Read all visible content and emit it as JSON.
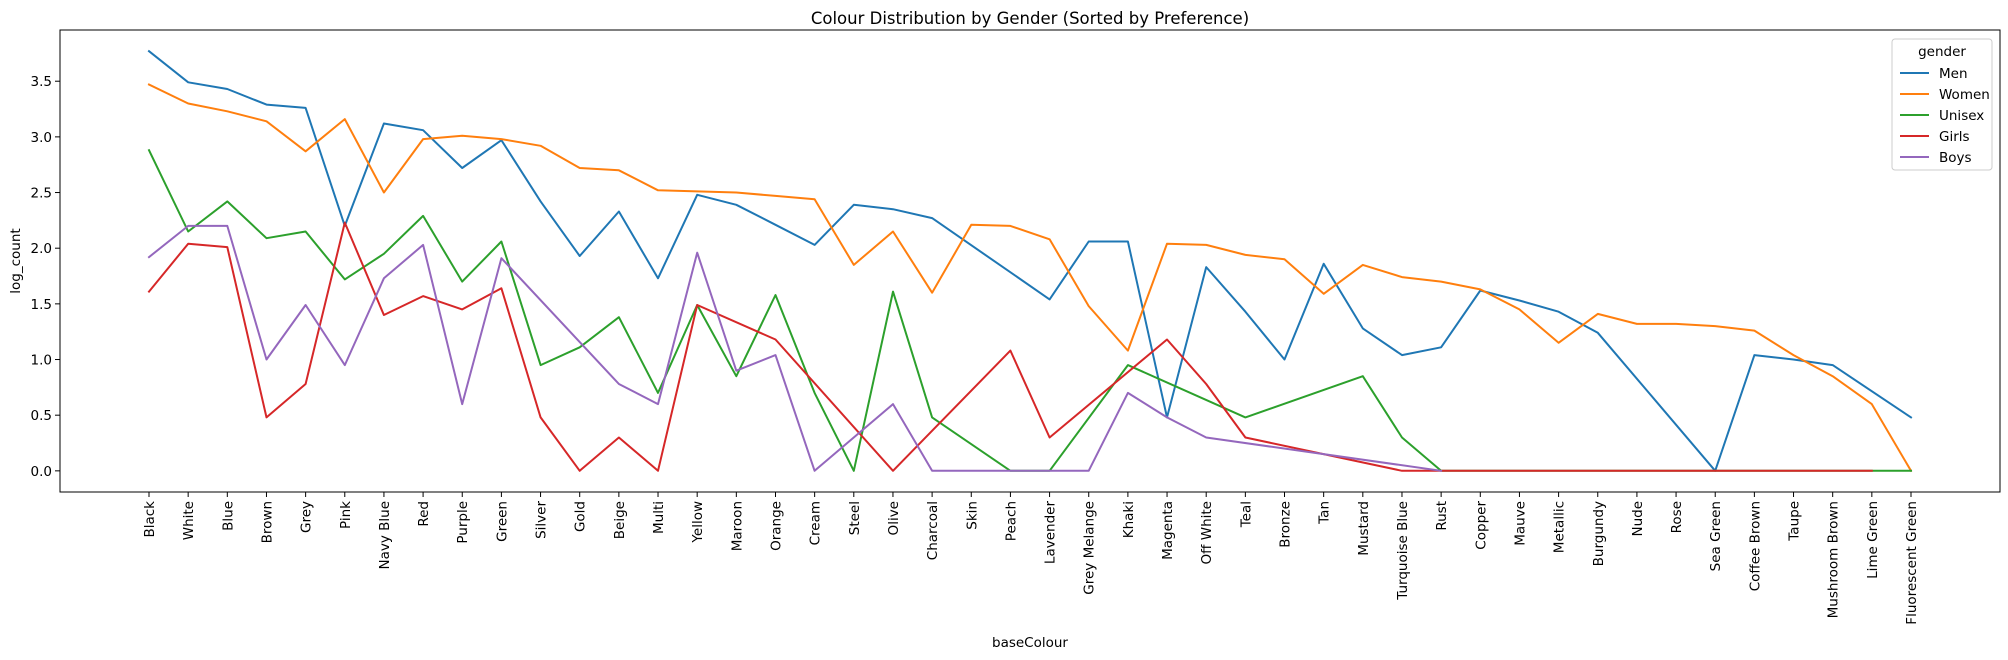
{
  "chart_data": {
    "type": "line",
    "title": "Colour Distribution by Gender (Sorted by Preference)",
    "xlabel": "baseColour",
    "ylabel": "log_count",
    "ylim": [
      -0.19,
      3.96
    ],
    "yticks": [
      0.0,
      0.5,
      1.0,
      1.5,
      2.0,
      2.5,
      3.0,
      3.5
    ],
    "ytick_labels": [
      "0.0",
      "0.5",
      "1.0",
      "1.5",
      "2.0",
      "2.5",
      "3.0",
      "3.5"
    ],
    "grid": false,
    "legend_title": "gender",
    "legend_position": "top-right",
    "categories": [
      "Black",
      "White",
      "Blue",
      "Brown",
      "Grey",
      "Pink",
      "Navy Blue",
      "Red",
      "Purple",
      "Green",
      "Silver",
      "Gold",
      "Beige",
      "Multi",
      "Yellow",
      "Maroon",
      "Orange",
      "Cream",
      "Steel",
      "Olive",
      "Charcoal",
      "Skin",
      "Peach",
      "Lavender",
      "Grey Melange",
      "Khaki",
      "Magenta",
      "Off White",
      "Teal",
      "Bronze",
      "Tan",
      "Mustard",
      "Turquoise Blue",
      "Rust",
      "Copper",
      "Mauve",
      "Metallic",
      "Burgundy",
      "Nude",
      "Rose",
      "Sea Green",
      "Coffee Brown",
      "Taupe",
      "Mushroom Brown",
      "Lime Green",
      "Fluorescent Green"
    ],
    "series": [
      {
        "name": "Men",
        "color": "#1f77b4",
        "values": [
          3.77,
          3.49,
          3.43,
          3.29,
          3.26,
          2.2,
          3.12,
          3.06,
          2.72,
          2.97,
          2.42,
          1.93,
          2.33,
          1.73,
          2.48,
          2.39,
          2.21,
          2.03,
          2.39,
          2.35,
          2.27,
          null,
          null,
          1.54,
          2.06,
          2.06,
          0.48,
          1.83,
          1.43,
          1.0,
          1.86,
          1.28,
          1.04,
          1.11,
          1.62,
          1.53,
          1.43,
          1.24,
          null,
          null,
          0.0,
          1.04,
          1.0,
          0.95,
          null,
          0.48
        ]
      },
      {
        "name": "Women",
        "color": "#ff7f0e",
        "values": [
          3.47,
          3.3,
          3.23,
          3.14,
          2.87,
          3.16,
          2.5,
          2.98,
          3.01,
          2.98,
          2.92,
          2.72,
          2.7,
          2.52,
          2.51,
          2.5,
          2.47,
          2.44,
          1.85,
          2.15,
          1.6,
          2.21,
          2.2,
          2.08,
          1.48,
          1.08,
          2.04,
          2.03,
          1.94,
          1.9,
          1.59,
          1.85,
          1.74,
          1.7,
          1.63,
          1.45,
          1.15,
          1.41,
          1.32,
          1.32,
          1.3,
          1.26,
          1.04,
          0.85,
          0.6,
          0.0
        ]
      },
      {
        "name": "Unisex",
        "color": "#2ca02c",
        "values": [
          2.88,
          2.15,
          2.42,
          2.09,
          2.15,
          1.72,
          1.95,
          2.29,
          1.7,
          2.06,
          0.95,
          1.11,
          1.38,
          0.7,
          1.49,
          0.85,
          1.58,
          0.7,
          0.0,
          1.61,
          0.48,
          null,
          0.0,
          0.0,
          null,
          0.95,
          null,
          null,
          0.48,
          null,
          null,
          0.85,
          0.3,
          0.0,
          null,
          null,
          null,
          null,
          null,
          null,
          null,
          null,
          null,
          null,
          0.0,
          0.0
        ]
      },
      {
        "name": "Girls",
        "color": "#d62728",
        "values": [
          1.61,
          2.04,
          2.01,
          0.48,
          0.78,
          2.23,
          1.4,
          1.57,
          1.45,
          1.64,
          0.48,
          0.0,
          0.3,
          0.0,
          1.49,
          null,
          1.18,
          null,
          null,
          0.0,
          null,
          null,
          1.08,
          0.3,
          null,
          null,
          1.18,
          0.78,
          0.3,
          null,
          null,
          null,
          0.0,
          0.0,
          0.0,
          0.0,
          0.0,
          0.0,
          0.0,
          0.0,
          0.0,
          0.0,
          0.0,
          0.0,
          0.0,
          null
        ]
      },
      {
        "name": "Boys",
        "color": "#9467bd",
        "values": [
          1.92,
          2.2,
          2.2,
          1.0,
          1.49,
          0.95,
          1.73,
          2.03,
          0.6,
          1.91,
          null,
          null,
          0.78,
          0.6,
          1.96,
          0.9,
          1.04,
          0.0,
          null,
          0.6,
          0.0,
          0.0,
          0.0,
          0.0,
          0.0,
          0.7,
          0.48,
          0.3,
          null,
          null,
          null,
          null,
          null,
          0.0,
          null,
          null,
          null,
          null,
          null,
          null,
          null,
          null,
          null,
          null,
          null,
          null
        ]
      }
    ]
  }
}
